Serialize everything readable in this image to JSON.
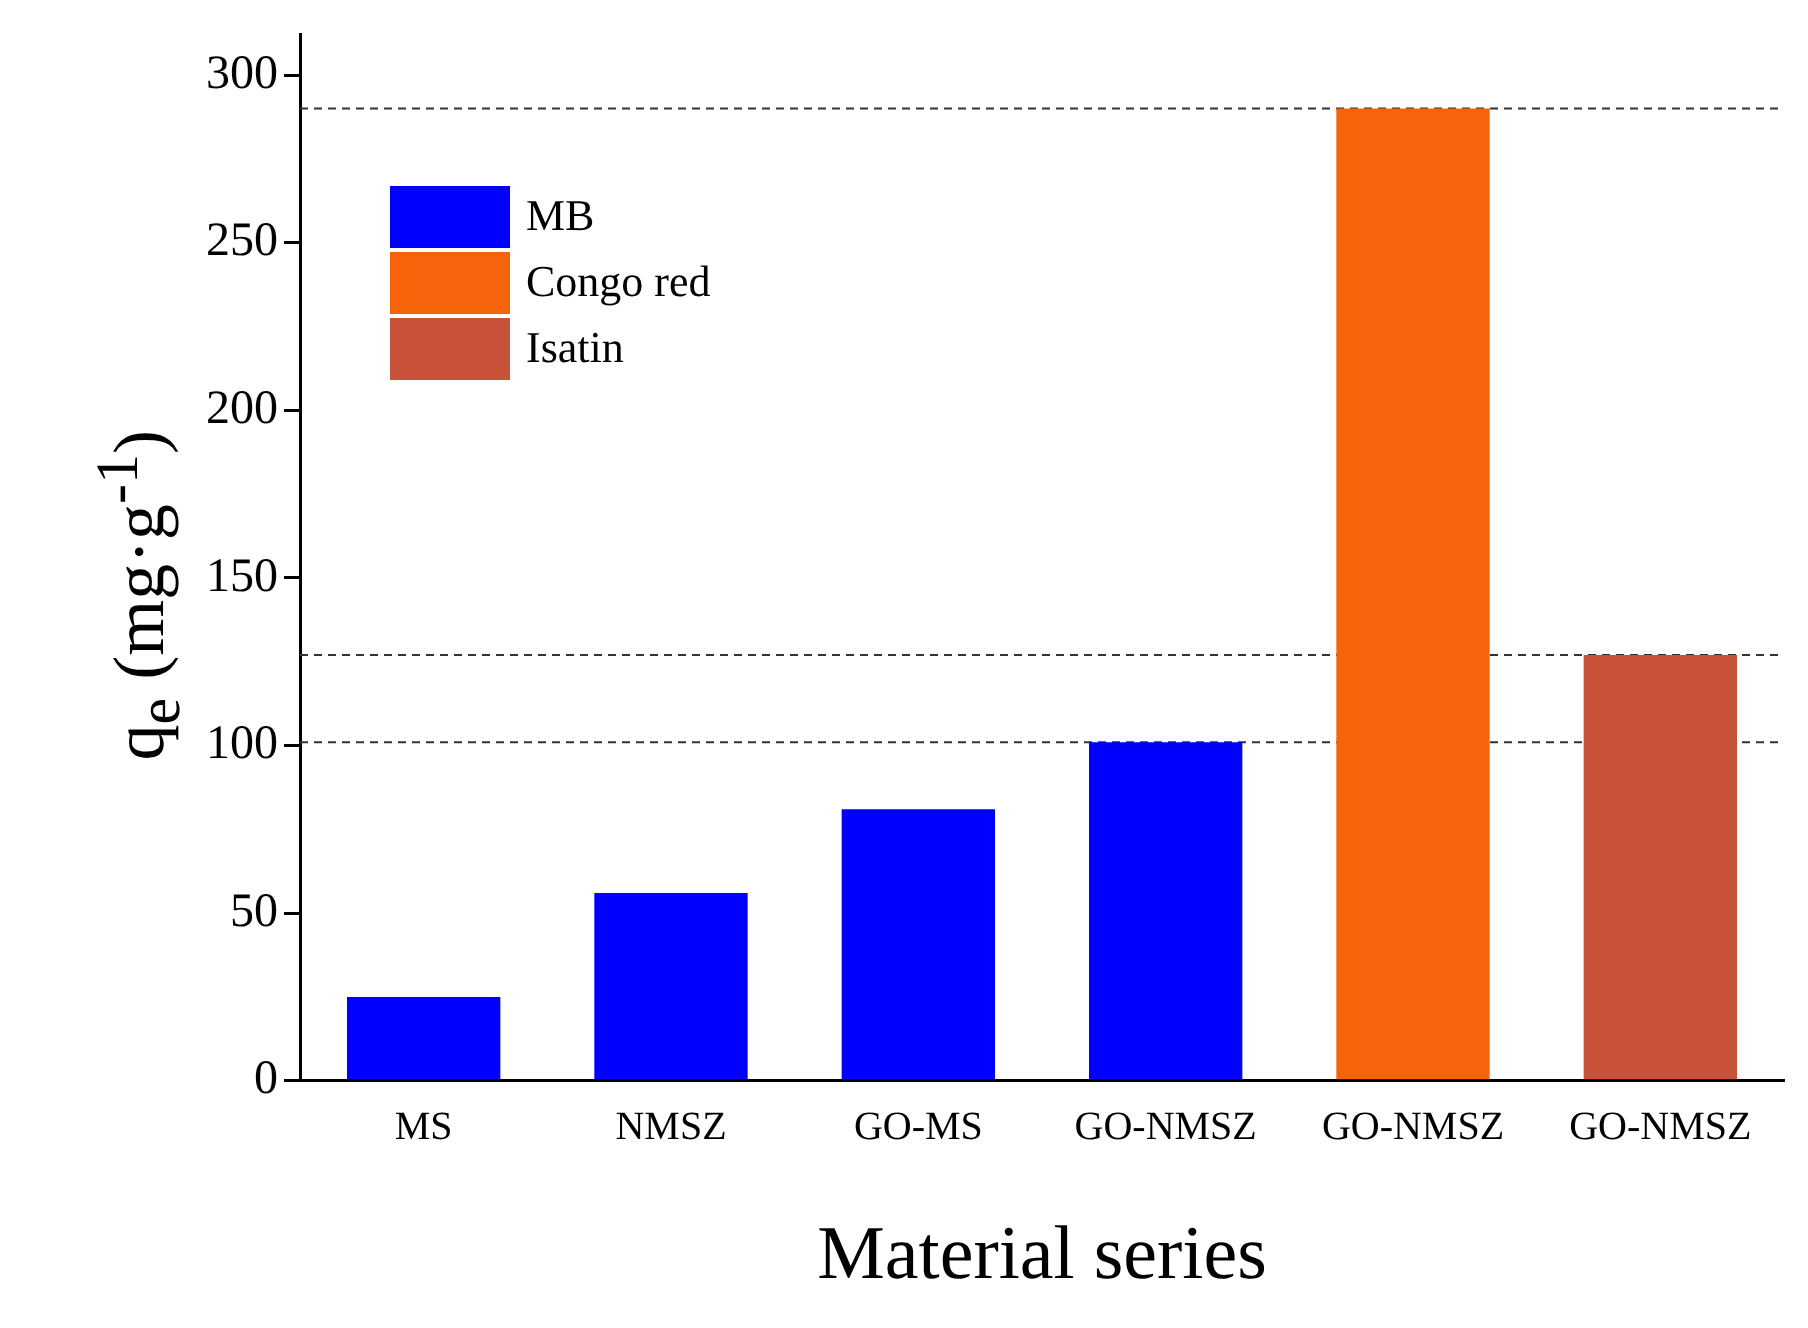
{
  "chart_data": {
    "type": "bar",
    "xlabel": "Material series",
    "ylabel": "q$_{e}$ (mg·g$^{-1}$)",
    "categories": [
      "MS",
      "NMSZ",
      "GO-MS",
      "GO-NMSZ",
      "GO-NMSZ",
      "GO-NMSZ"
    ],
    "series": [
      {
        "name": "MB",
        "color": "#0000ff",
        "values": [
          25,
          56,
          81,
          101,
          null,
          null
        ]
      },
      {
        "name": "Congo red",
        "color": "#f5630a",
        "values": [
          null,
          null,
          null,
          null,
          290,
          null
        ]
      },
      {
        "name": "Isatin",
        "color": "#c8513a",
        "values": [
          null,
          null,
          null,
          null,
          null,
          127
        ]
      }
    ],
    "ylim": [
      0,
      312
    ],
    "yticks": [
      0,
      50,
      100,
      150,
      200,
      250,
      300
    ],
    "grid": false,
    "legend": "top left",
    "ref_lines": [
      {
        "axis": "y",
        "value": 290,
        "line_style": "dashed",
        "color": "#333333"
      },
      {
        "axis": "y",
        "value": 127,
        "line_style": "dashed",
        "color": "#333333"
      },
      {
        "axis": "y",
        "value": 101,
        "line_style": "dashed",
        "color": "#333333"
      }
    ]
  }
}
